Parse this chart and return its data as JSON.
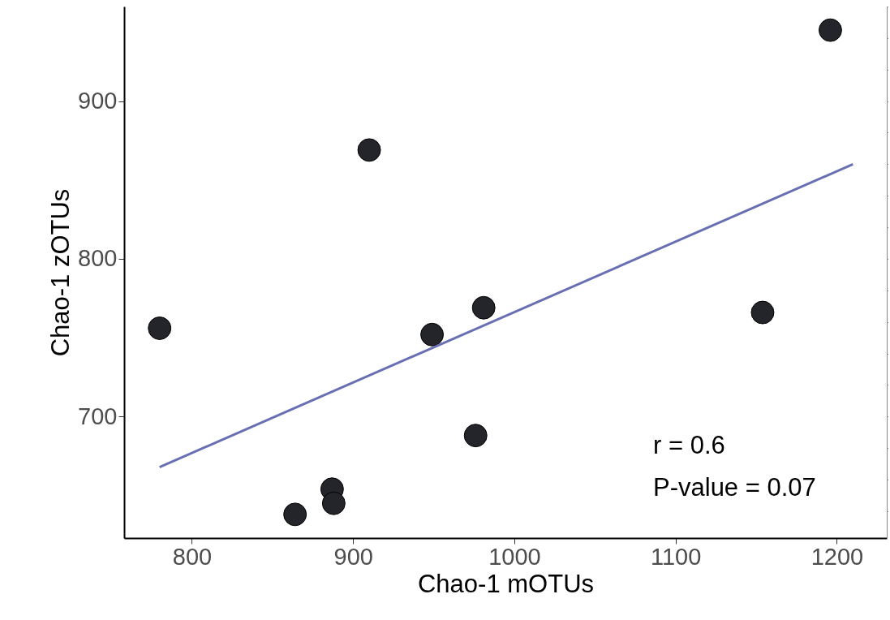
{
  "chart_data": {
    "type": "scatter",
    "xlabel": "Chao-1 mOTUs",
    "ylabel": "Chao-1 zOTUs",
    "xlim": [
      758,
      1231
    ],
    "ylim": [
      623,
      960
    ],
    "xticks": [
      800,
      900,
      1000,
      1100,
      1200
    ],
    "yticks": [
      700,
      800,
      900
    ],
    "grid": false,
    "series": [
      {
        "marker": "circle",
        "color": "#24242b",
        "x": [
          780,
          864,
          887,
          888,
          910,
          949,
          976,
          981,
          1154,
          1196
        ],
        "values": [
          756,
          638,
          654,
          645,
          869,
          752,
          688,
          769,
          766,
          945
        ]
      },
      {
        "type": "line",
        "color": "#6870b3",
        "x": [
          780,
          1210
        ],
        "values": [
          668,
          860
        ]
      }
    ],
    "annotations": [
      "r = 0.6",
      "P-value = 0.07"
    ]
  }
}
